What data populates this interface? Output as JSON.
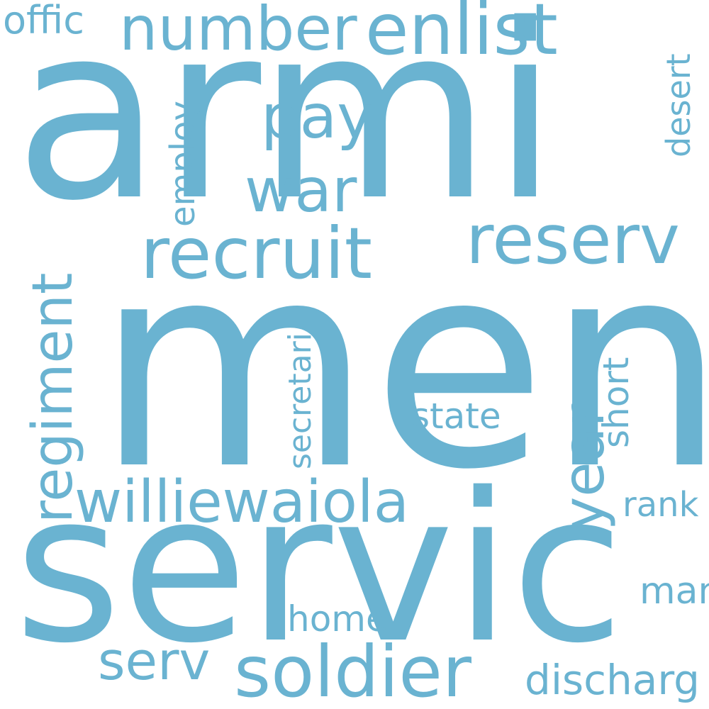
{
  "word_color": "#6AB3D1",
  "background_color": "#ffffff",
  "words": {
    "armi": "armi",
    "men": "men",
    "servic": "servic",
    "number": "number",
    "enlist": "enlist",
    "offic": "offic",
    "pay": "pay",
    "war": "war",
    "recruit": "recruit",
    "reserv": "reserv",
    "employ": "employ",
    "desert": "desert",
    "regiment": "regiment",
    "year": "year",
    "short": "short",
    "secretari": "secretari",
    "state": "state",
    "williewaiola": "williewaiola",
    "rank": "rank",
    "man": "man",
    "home": "home",
    "serv": "serv",
    "soldier": "soldier",
    "discharg": "discharg"
  }
}
